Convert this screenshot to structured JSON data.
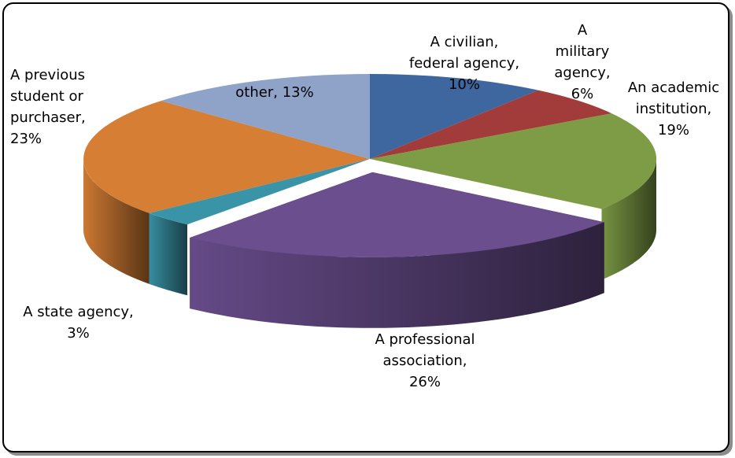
{
  "chart_data": {
    "type": "pie",
    "title": "",
    "three_d": true,
    "slices": [
      {
        "name": "A civilian, federal agency",
        "value": 10,
        "color": "#3D679E",
        "label": "A civilian,\nfederal agency,\n10%"
      },
      {
        "name": "A military agency",
        "value": 6,
        "color": "#A23C3A",
        "label": "A\nmilitary\nagency,\n6%"
      },
      {
        "name": "An academic institution",
        "value": 19,
        "color": "#7D9C45",
        "label": "An academic\ninstitution,\n19%"
      },
      {
        "name": "A professional association",
        "value": 26,
        "color": "#6A4E8E",
        "label": "A professional\nassociation,\n26%"
      },
      {
        "name": "A state agency",
        "value": 3,
        "color": "#3A94A8",
        "label": "A state agency,\n3%"
      },
      {
        "name": "A previous student or purchaser",
        "value": 23,
        "color": "#D77E35",
        "label": "A previous\nstudent or\npurchaser,\n23%"
      },
      {
        "name": "other",
        "value": 13,
        "color": "#8FA3C8",
        "label": "other, 13%"
      }
    ]
  }
}
